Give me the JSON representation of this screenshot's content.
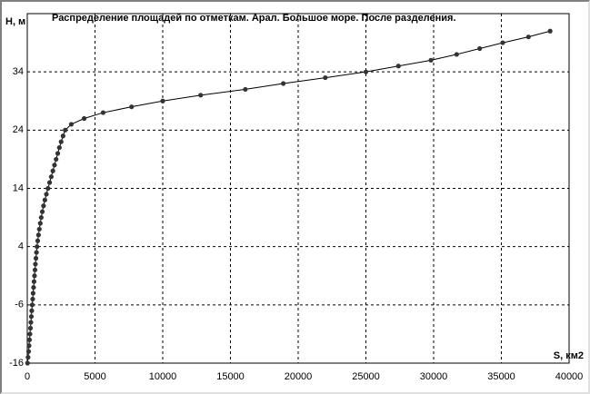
{
  "chart_data": {
    "type": "line",
    "title": "Распределение площадей по отметкам. Арал. Большое море. После разделения.",
    "y_label": "H, м",
    "x_label": "S, км2",
    "x": [
      20,
      60,
      100,
      130,
      165,
      200,
      235,
      265,
      300,
      330,
      365,
      400,
      430,
      465,
      500,
      535,
      570,
      600,
      640,
      680,
      720,
      770,
      830,
      890,
      960,
      1030,
      1110,
      1200,
      1300,
      1410,
      1530,
      1650,
      1770,
      1890,
      2010,
      2130,
      2250,
      2370,
      2500,
      2640,
      2800,
      3250,
      4200,
      5600,
      7700,
      10000,
      12800,
      16100,
      18900,
      22000,
      25000,
      27400,
      29800,
      31700,
      33400,
      35100,
      37000,
      38600
    ],
    "series": [
      {
        "name": "H",
        "color": "#000000",
        "marker_color": "#333333",
        "values": [
          -16,
          -15,
          -14,
          -13,
          -12,
          -11,
          -10,
          -9,
          -8,
          -7,
          -6,
          -5,
          -4,
          -3,
          -2,
          -1,
          0,
          1,
          2,
          3,
          4,
          5,
          6,
          7,
          8,
          9,
          10,
          11,
          12,
          13,
          14,
          15,
          16,
          17,
          18,
          19,
          20,
          21,
          22,
          23,
          24,
          25,
          26,
          27,
          28,
          29,
          30,
          31,
          32,
          33,
          34,
          35,
          36,
          37,
          38,
          39,
          40,
          41
        ]
      }
    ],
    "xlim": [
      0,
      40000
    ],
    "ylim": [
      -16,
      44
    ],
    "xticks": [
      0,
      5000,
      10000,
      15000,
      20000,
      25000,
      30000,
      35000,
      40000
    ],
    "yticks": [
      -16,
      -6,
      4,
      14,
      24,
      34
    ],
    "grid": true
  }
}
